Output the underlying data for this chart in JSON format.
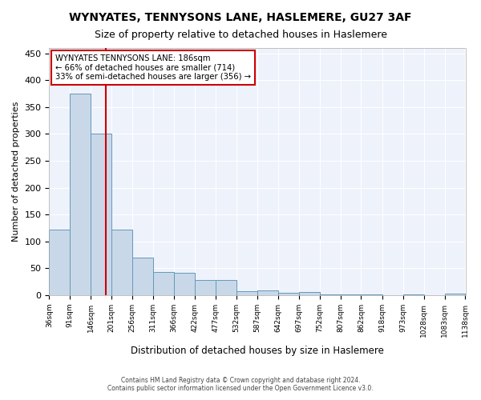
{
  "title": "WYNYATES, TENNYSONS LANE, HASLEMERE, GU27 3AF",
  "subtitle": "Size of property relative to detached houses in Haslemere",
  "xlabel": "Distribution of detached houses by size in Haslemere",
  "ylabel": "Number of detached properties",
  "bin_edges": [
    36,
    91,
    146,
    201,
    256,
    311,
    366,
    422,
    477,
    532,
    587,
    642,
    697,
    752,
    807,
    862,
    918,
    973,
    1028,
    1083,
    1138
  ],
  "bar_heights": [
    122,
    375,
    300,
    122,
    70,
    43,
    42,
    28,
    28,
    8,
    9,
    5,
    6,
    1,
    2,
    1,
    0,
    2,
    0,
    3
  ],
  "bar_color": "#c8d8e8",
  "bar_edgecolor": "#6699bb",
  "property_size": 186,
  "property_label": "WYNYATES TENNYSONS LANE: 186sqm",
  "annotation_line1": "← 66% of detached houses are smaller (714)",
  "annotation_line2": "33% of semi-detached houses are larger (356) →",
  "vline_color": "#cc0000",
  "annotation_box_edgecolor": "#cc0000",
  "ylim": [
    0,
    460
  ],
  "yticks": [
    0,
    50,
    100,
    150,
    200,
    250,
    300,
    350,
    400,
    450
  ],
  "background_color": "#eef2fb",
  "grid_color": "#ffffff",
  "footer_line1": "Contains HM Land Registry data © Crown copyright and database right 2024.",
  "footer_line2": "Contains public sector information licensed under the Open Government Licence v3.0."
}
